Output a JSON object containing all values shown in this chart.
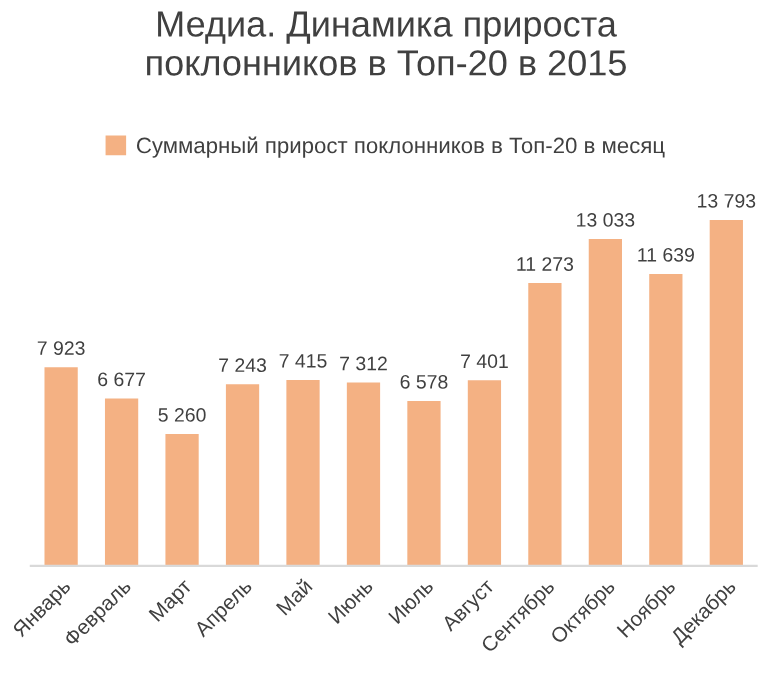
{
  "chart_data": {
    "type": "bar",
    "title": "Медиа. Динамика прироста\nпоклонников в Топ-20 в 2015",
    "categories": [
      "Январь",
      "Февраль",
      "Март",
      "Апрель",
      "Май",
      "Июнь",
      "Июль",
      "Август",
      "Сентябрь",
      "Октябрь",
      "Ноябрь",
      "Декабрь"
    ],
    "series": [
      {
        "name": "Суммарный прирост поклонников в Топ-20 в месяц",
        "color": "#f4b183",
        "values": [
          7923,
          6677,
          5260,
          7243,
          7415,
          7312,
          6578,
          7401,
          11273,
          13033,
          11639,
          13793
        ],
        "value_labels": [
          "7 923",
          "6 677",
          "5 260",
          "7 243",
          "7 415",
          "7 312",
          "6 578",
          "7 401",
          "11 273",
          "13 033",
          "11 639",
          "13 793"
        ]
      }
    ],
    "legend": "top",
    "grid": false
  }
}
